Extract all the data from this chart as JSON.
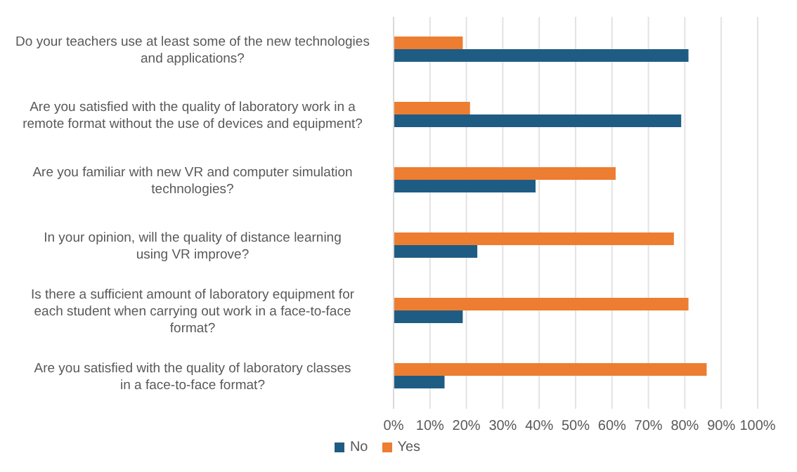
{
  "chart_data": {
    "type": "bar",
    "orientation": "horizontal",
    "categories": [
      "Do your teachers use at least some of the new technologies and applications?",
      "Are you satisfied with the quality of laboratory work in a remote format without the use of devices and equipment?",
      "Are you familiar with new VR and computer simulation technologies?",
      "In your opinion, will the quality of distance learning using VR improve?",
      "Is there a sufficient amount of laboratory equipment for each student when carrying out work in a face-to-face format?",
      "Are you satisfied with the quality of laboratory classes in a face-to-face format?"
    ],
    "series": [
      {
        "name": "Yes",
        "color": "#ed7d31",
        "values": [
          19,
          21,
          61,
          77,
          81,
          86
        ]
      },
      {
        "name": "No",
        "color": "#1f5c84",
        "values": [
          81,
          79,
          39,
          23,
          19,
          14
        ]
      }
    ],
    "xlim": [
      0,
      100
    ],
    "xticks": [
      {
        "value": 0,
        "label": "0%"
      },
      {
        "value": 10,
        "label": "10%"
      },
      {
        "value": 20,
        "label": "20%"
      },
      {
        "value": 30,
        "label": "30%"
      },
      {
        "value": 40,
        "label": "40%"
      },
      {
        "value": 50,
        "label": "50%"
      },
      {
        "value": 60,
        "label": "60%"
      },
      {
        "value": 70,
        "label": "70%"
      },
      {
        "value": 80,
        "label": "80%"
      },
      {
        "value": 90,
        "label": "90%"
      },
      {
        "value": 100,
        "label": "100%"
      }
    ],
    "grid": "x",
    "legend": "bottom"
  }
}
